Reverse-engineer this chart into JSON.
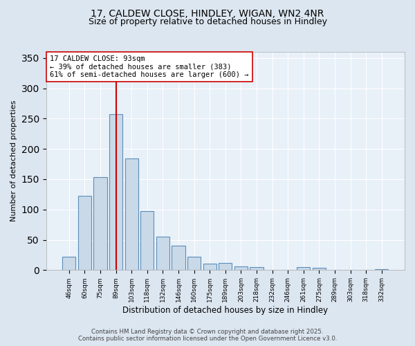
{
  "title_line1": "17, CALDEW CLOSE, HINDLEY, WIGAN, WN2 4NR",
  "title_line2": "Size of property relative to detached houses in Hindley",
  "xlabel": "Distribution of detached houses by size in Hindley",
  "ylabel": "Number of detached properties",
  "bar_labels": [
    "46sqm",
    "60sqm",
    "75sqm",
    "89sqm",
    "103sqm",
    "118sqm",
    "132sqm",
    "146sqm",
    "160sqm",
    "175sqm",
    "189sqm",
    "203sqm",
    "218sqm",
    "232sqm",
    "246sqm",
    "261sqm",
    "275sqm",
    "289sqm",
    "303sqm",
    "318sqm",
    "332sqm"
  ],
  "bar_values": [
    22,
    122,
    153,
    257,
    184,
    97,
    55,
    40,
    22,
    11,
    12,
    6,
    5,
    0,
    0,
    5,
    4,
    0,
    0,
    0,
    2
  ],
  "bar_color": "#c9d9e8",
  "bar_edge_color": "#5b8db8",
  "vline_x": 3,
  "vline_color": "#cc0000",
  "annotation_text": "17 CALDEW CLOSE: 93sqm\n← 39% of detached houses are smaller (383)\n61% of semi-detached houses are larger (600) →",
  "annotation_box_facecolor": "#ffffff",
  "annotation_box_edgecolor": "#cc0000",
  "ylim": [
    0,
    360
  ],
  "yticks": [
    0,
    50,
    100,
    150,
    200,
    250,
    300,
    350
  ],
  "bg_color": "#dce6f0",
  "plot_bg_color": "#e8f0f8",
  "footer_line1": "Contains HM Land Registry data © Crown copyright and database right 2025.",
  "footer_line2": "Contains public sector information licensed under the Open Government Licence v3.0.",
  "title_fontsize": 10,
  "subtitle_fontsize": 9,
  "annotation_fontsize": 7.5
}
